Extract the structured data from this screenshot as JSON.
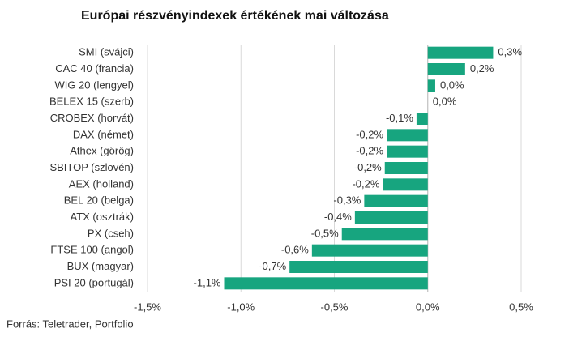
{
  "chart_data": {
    "type": "barh",
    "title": "Európai részvényindexek értékének mai változása",
    "source": "Forrás: Teletrader, Portfolio",
    "categories": [
      "SMI (svájci)",
      "CAC 40 (francia)",
      "WIG 20 (lengyel)",
      "BELEX 15 (szerb)",
      "CROBEX (horvát)",
      "DAX (német)",
      "Athex (görög)",
      "SBITOP (szlovén)",
      "AEX (holland)",
      "BEL 20 (belga)",
      "ATX (osztrák)",
      "PX (cseh)",
      "FTSE 100 (angol)",
      "BUX (magyar)",
      "PSI 20 (portugál)"
    ],
    "values": [
      0.35,
      0.2,
      0.04,
      0.0,
      -0.06,
      -0.22,
      -0.22,
      -0.23,
      -0.24,
      -0.34,
      -0.39,
      -0.46,
      -0.62,
      -0.74,
      -1.09
    ],
    "value_labels": [
      "0,3%",
      "0,2%",
      "0,0%",
      "0,0%",
      "-0,1%",
      "-0,2%",
      "-0,2%",
      "-0,2%",
      "-0,2%",
      "-0,3%",
      "-0,4%",
      "-0,5%",
      "-0,6%",
      "-0,7%",
      "-1,1%"
    ],
    "color": "#17a57f",
    "xlim": [
      -1.5,
      0.5
    ],
    "xticks": [
      {
        "value": -1.5,
        "label": "-1,5%"
      },
      {
        "value": -1.0,
        "label": "-1,0%"
      },
      {
        "value": -0.5,
        "label": "-0,5%"
      },
      {
        "value": 0.0,
        "label": "0,0%"
      },
      {
        "value": 0.5,
        "label": "0,5%"
      }
    ],
    "grid": true
  }
}
